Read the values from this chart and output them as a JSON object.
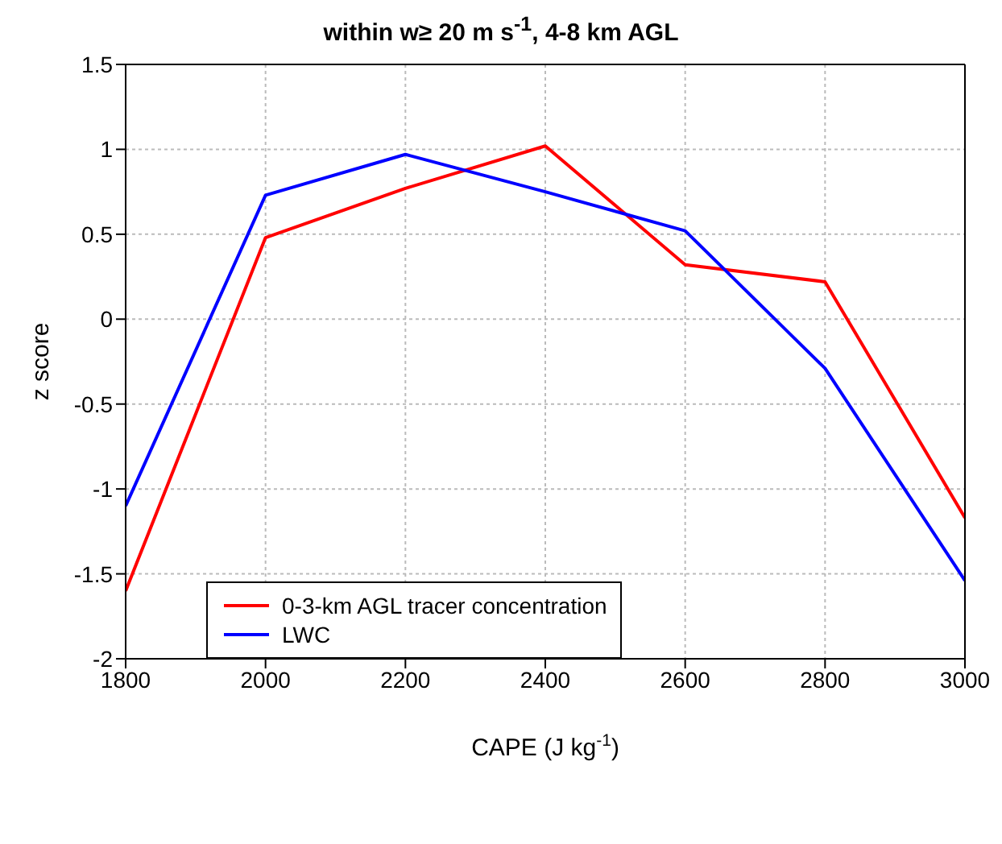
{
  "chart_data": {
    "type": "line",
    "title": "within w≥ 20 m s$^{-1}$, 4-8 km AGL",
    "xlabel": "CAPE (J kg$^{-1}$)",
    "ylabel": "z score",
    "x": [
      1800,
      2000,
      2200,
      2400,
      2600,
      2800,
      3000
    ],
    "series": [
      {
        "name": "0-3-km AGL tracer concentration",
        "color": "#ff0000",
        "values": [
          -1.6,
          0.48,
          0.77,
          1.02,
          0.32,
          0.22,
          -1.17
        ]
      },
      {
        "name": "LWC",
        "color": "#0000ff",
        "values": [
          -1.1,
          0.73,
          0.97,
          0.75,
          0.52,
          -0.29,
          -1.54
        ]
      }
    ],
    "xlim": [
      1800,
      3000
    ],
    "xticks": [
      1800,
      2000,
      2200,
      2400,
      2600,
      2800,
      3000
    ],
    "ylim": [
      -2,
      1.5
    ],
    "yticks": [
      -2,
      -1.5,
      -1,
      -0.5,
      0,
      0.5,
      1,
      1.5
    ],
    "grid": true,
    "legend": "bottom left",
    "marker": "none",
    "line_style": "solid"
  }
}
